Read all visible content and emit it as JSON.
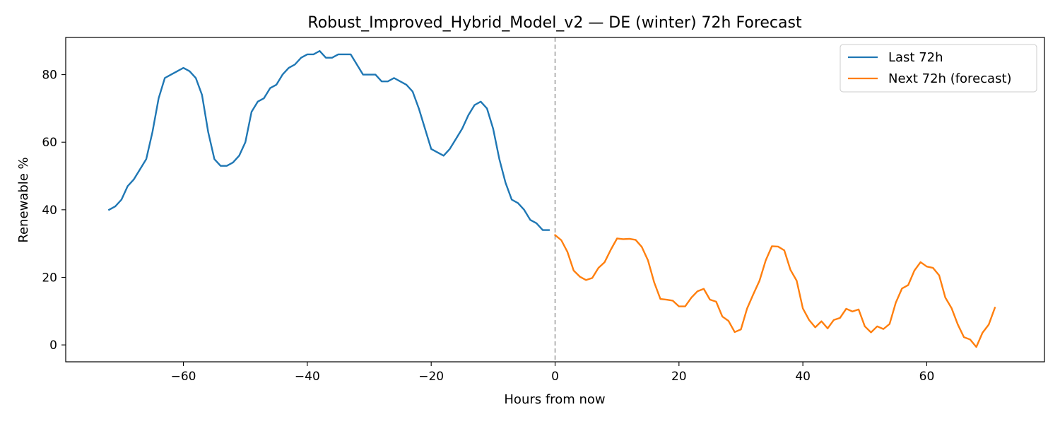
{
  "chart_data": {
    "type": "line",
    "title": "Robust_Improved_Hybrid_Model_v2 — DE (winter) 72h Forecast",
    "xlabel": "Hours from now",
    "ylabel": "Renewable %",
    "xlim": [
      -79,
      79
    ],
    "ylim": [
      -5,
      91
    ],
    "x_ticks": [
      -60,
      -40,
      -20,
      0,
      20,
      40,
      60
    ],
    "x_tick_labels": [
      "−60",
      "−40",
      "−20",
      "0",
      "20",
      "40",
      "60"
    ],
    "y_ticks": [
      0,
      20,
      40,
      60,
      80
    ],
    "y_tick_labels": [
      "0",
      "20",
      "40",
      "60",
      "80"
    ],
    "grid": false,
    "legend_position": "top-right",
    "now_line_x": 0,
    "series": [
      {
        "name": "Last 72h",
        "color": "#1f77b4",
        "x_start": -72,
        "x_step": 1,
        "values": [
          40,
          41,
          43,
          47,
          49,
          52,
          55,
          63,
          73,
          79,
          80,
          81,
          82,
          81,
          79,
          74,
          63,
          55,
          53,
          53,
          54,
          56,
          60,
          69,
          72,
          73,
          76,
          77,
          80,
          82,
          83,
          85,
          86,
          86,
          87,
          85,
          85,
          86,
          86,
          86,
          83,
          80,
          80,
          80,
          78,
          78,
          79,
          78,
          77,
          75,
          70,
          64,
          58,
          57,
          56,
          58,
          61,
          64,
          68,
          71,
          72,
          70,
          64,
          55,
          48,
          43,
          42,
          40,
          37,
          36,
          34,
          34
        ]
      },
      {
        "name": "Next 72h (forecast)",
        "color": "#ff7f0e",
        "x_start": 0,
        "x_step": 1,
        "values": [
          32.5,
          31,
          27.5,
          22,
          20.2,
          19.2,
          19.8,
          22.8,
          24.5,
          28.2,
          31.5,
          31.3,
          31.4,
          31.1,
          29,
          25,
          18.5,
          13.6,
          13.4,
          13.1,
          11.4,
          11.4,
          14,
          15.9,
          16.6,
          13.4,
          12.8,
          8.4,
          7.1,
          3.8,
          4.6,
          10.8,
          15,
          19,
          25,
          29.2,
          29.1,
          28,
          22.2,
          19,
          10.8,
          7.4,
          5.2,
          7,
          4.9,
          7.4,
          8,
          10.7,
          9.9,
          10.5,
          5.5,
          3.7,
          5.5,
          4.7,
          6.2,
          12.5,
          16.7,
          17.7,
          22,
          24.5,
          23.2,
          22.8,
          20.6,
          14,
          10.9,
          6.1,
          2.3,
          1.6,
          -0.6,
          3.6,
          6,
          11
        ]
      }
    ]
  }
}
